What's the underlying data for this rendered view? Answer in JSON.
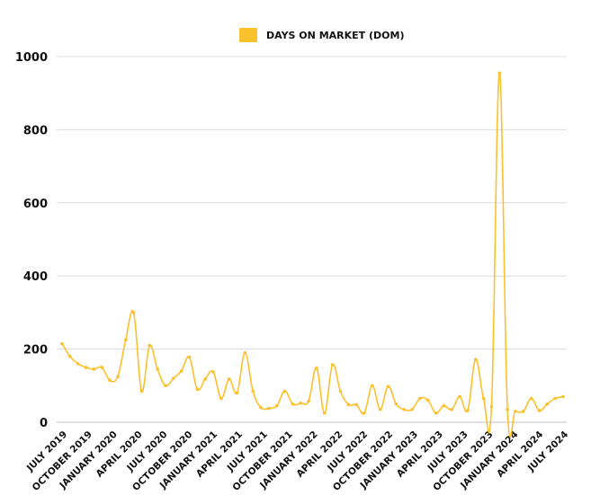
{
  "chart_data": {
    "type": "line",
    "series_name": "DAYS ON MARKET (DOM)",
    "color": "#FBC02D",
    "ylim": [
      0,
      1000
    ],
    "yticks": [
      0,
      200,
      400,
      600,
      800,
      1000
    ],
    "grid": true,
    "legend_position": "top-center",
    "x_labels": [
      "JULY 2019",
      "OCTOBER 2019",
      "JANUARY 2020",
      "APRIL 2020",
      "JULY 2020",
      "OCTOBER 2020",
      "JANUARY 2021",
      "APRIL 2021",
      "JULY 2021",
      "OCTOBER 2021",
      "JANUARY 2022",
      "APRIL 2022",
      "JULY 2022",
      "OCTOBER 2022",
      "JANUARY 2023",
      "APRIL 2023",
      "JULY 2023",
      "OCTOBER 2023",
      "JANUARY 2024",
      "APRIL 2024",
      "JULY 2024"
    ],
    "values": [
      215,
      180,
      160,
      150,
      145,
      150,
      115,
      125,
      225,
      300,
      85,
      210,
      145,
      100,
      120,
      140,
      178,
      90,
      118,
      138,
      65,
      118,
      80,
      190,
      85,
      40,
      38,
      45,
      85,
      50,
      52,
      58,
      148,
      25,
      157,
      85,
      48,
      48,
      25,
      100,
      35,
      98,
      50,
      35,
      35,
      65,
      60,
      25,
      45,
      35,
      70,
      32,
      172,
      65,
      42,
      955,
      35,
      30,
      30,
      65,
      32,
      50,
      65,
      70
    ]
  }
}
